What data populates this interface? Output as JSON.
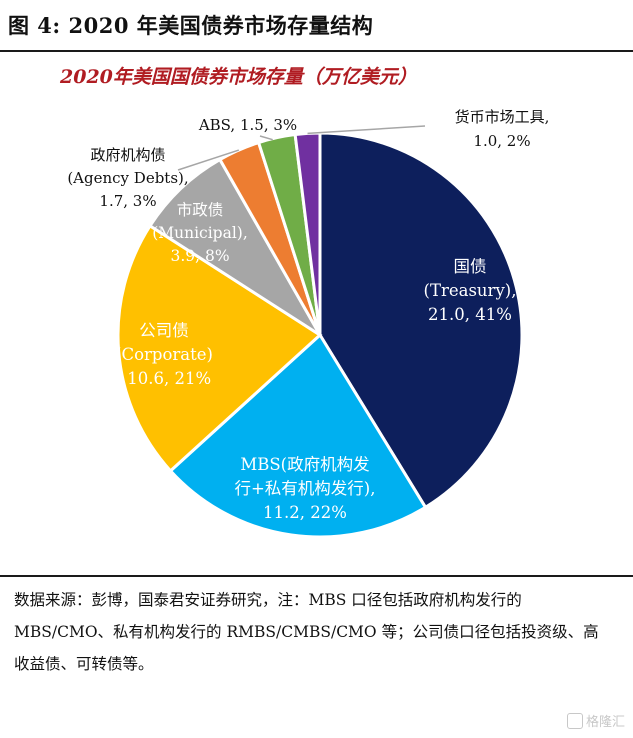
{
  "figure": {
    "title": "图 4:  2020 年美国债券市场存量结构"
  },
  "chart_data": {
    "type": "pie",
    "title": "2020年美国国债券市场存量（万亿美元）",
    "slices": [
      {
        "name_cn": "国债",
        "name_en": "(Treasury),",
        "value": 21.0,
        "pct": "41%",
        "value_label": "21.0, 41%",
        "color": "#0d1f5c"
      },
      {
        "name_cn": "MBS(政府机构发",
        "name_en": "行+私有机构发行),",
        "value": 11.2,
        "pct": "22%",
        "value_label": "11.2, 22%",
        "color": "#00b0f0"
      },
      {
        "name_cn": "公司债",
        "name_en": "(Corporate)",
        "value": 10.6,
        "pct": "21%",
        "value_label": ", 10.6, 21%",
        "color": "#ffc000"
      },
      {
        "name_cn": "市政债",
        "name_en": "(Municipal),",
        "value": 3.9,
        "pct": "8%",
        "value_label": "3.9, 8%",
        "color": "#a6a6a6"
      },
      {
        "name_cn": "政府机构债",
        "name_en": "(Agency Debts),",
        "value": 1.7,
        "pct": "3%",
        "value_label": "1.7, 3%",
        "color": "#ed7d31"
      },
      {
        "name_cn": "",
        "name_en": "ABS, 1.5, 3%",
        "value": 1.5,
        "pct": "3%",
        "value_label": "",
        "color": "#70ad47"
      },
      {
        "name_cn": "货币市场工具,",
        "name_en": "1.0, 2%",
        "value": 1.0,
        "pct": "2%",
        "value_label": "",
        "color": "#7030a0"
      }
    ]
  },
  "source": {
    "note": "数据来源：彭博，国泰君安证券研究，注：MBS 口径包括政府机构发行的 MBS/CMO、私有机构发行的 RMBS/CMBS/CMO 等；公司债口径包括投资级、高收益债、可转债等。"
  },
  "watermark": {
    "text": "格隆汇"
  }
}
